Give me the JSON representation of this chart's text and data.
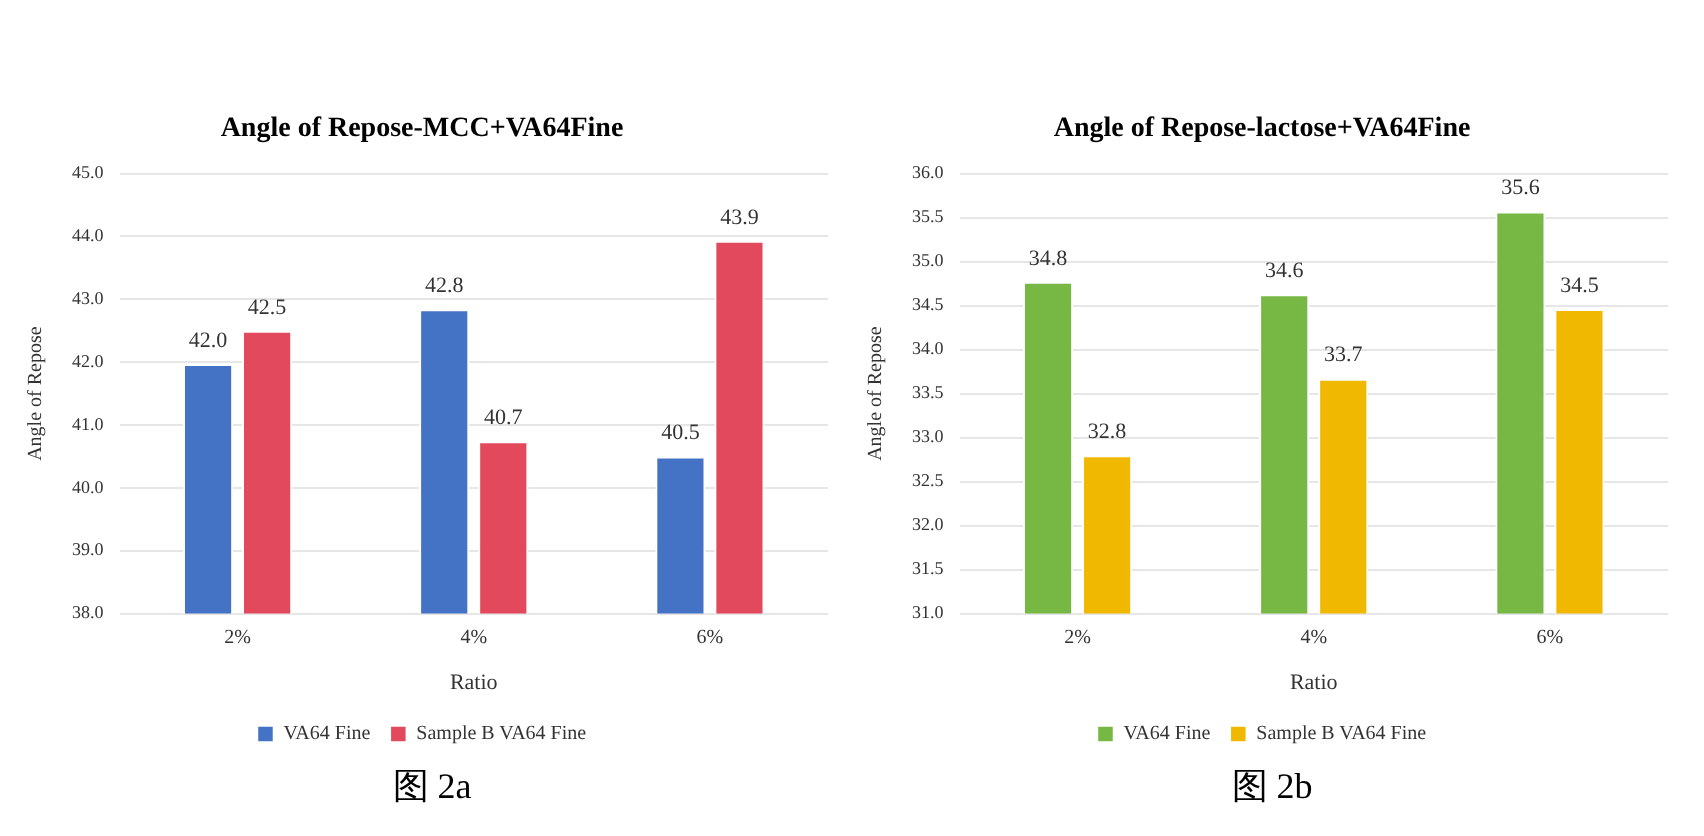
{
  "chart_data": [
    {
      "type": "bar",
      "title": "Angle of Repose-MCC+VA64Fine",
      "xlabel": "Ratio",
      "ylabel": "Angle of Repose",
      "categories": [
        "2%",
        "4%",
        "6%"
      ],
      "series": [
        {
          "name": "VA64 Fine",
          "color": "#4472c4",
          "values": [
            41.97,
            42.84,
            40.5
          ],
          "value_labels": [
            "42.0",
            "42.8",
            "40.5"
          ]
        },
        {
          "name": "Sample B VA64 Fine",
          "color": "#e2495c",
          "values": [
            42.5,
            40.74,
            43.93
          ],
          "value_labels": [
            "42.5",
            "40.7",
            "43.9"
          ]
        }
      ],
      "ylim": [
        38,
        45
      ],
      "yticks": [
        {
          "value": 38,
          "label": "38.0"
        },
        {
          "value": 39,
          "label": "39.0"
        },
        {
          "value": 40,
          "label": "40.0"
        },
        {
          "value": 41,
          "label": "41.0"
        },
        {
          "value": 42,
          "label": "42.0"
        },
        {
          "value": 43,
          "label": "43.0"
        },
        {
          "value": 44,
          "label": "44.0"
        },
        {
          "value": 45,
          "label": "45.0"
        }
      ],
      "grid": "y",
      "legend": "bottom",
      "annotations": [
        "图 2a"
      ]
    },
    {
      "type": "bar",
      "title": "Angle of Repose-lactose+VA64Fine",
      "xlabel": "Ratio",
      "ylabel": "Angle of Repose",
      "categories": [
        "2%",
        "4%",
        "6%"
      ],
      "series": [
        {
          "name": "VA64 Fine",
          "color": "#76b843",
          "values": [
            34.77,
            34.63,
            35.57
          ],
          "value_labels": [
            "34.8",
            "34.6",
            "35.6"
          ]
        },
        {
          "name": "Sample B VA64 Fine",
          "color": "#f0b800",
          "values": [
            32.8,
            33.67,
            34.46
          ],
          "value_labels": [
            "32.8",
            "33.7",
            "34.5"
          ]
        }
      ],
      "ylim": [
        31,
        36
      ],
      "yticks": [
        {
          "value": 31,
          "label": "31.0"
        },
        {
          "value": 31.5,
          "label": "31.5"
        },
        {
          "value": 32,
          "label": "32.0"
        },
        {
          "value": 32.5,
          "label": "32.5"
        },
        {
          "value": 33,
          "label": "33.0"
        },
        {
          "value": 33.5,
          "label": "33.5"
        },
        {
          "value": 34,
          "label": "34.0"
        },
        {
          "value": 34.5,
          "label": "34.5"
        },
        {
          "value": 35,
          "label": "35.0"
        },
        {
          "value": 35.5,
          "label": "35.5"
        },
        {
          "value": 36,
          "label": "36.0"
        }
      ],
      "grid": "y",
      "legend": "bottom",
      "annotations": [
        "图 2b"
      ]
    }
  ]
}
